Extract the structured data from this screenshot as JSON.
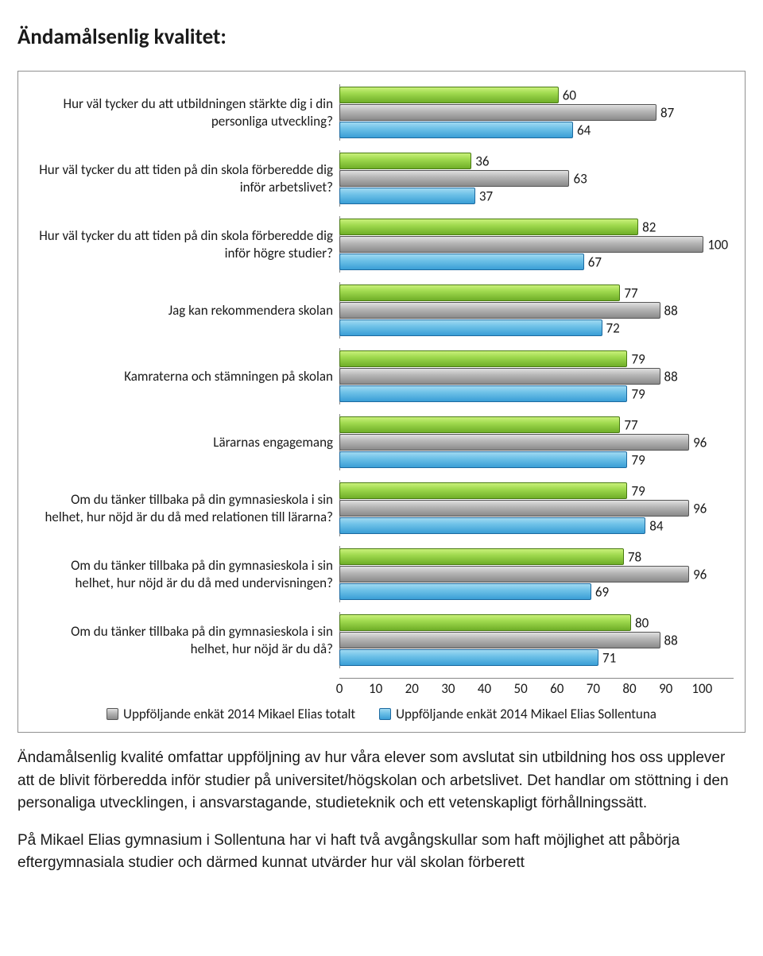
{
  "title": "Ändamålsenlig kvalitet:",
  "chart": {
    "type": "bar",
    "xlim": [
      0,
      100
    ],
    "xtick_step": 10,
    "series_colors": {
      "green": {
        "name": "green",
        "is_plotted": false
      },
      "grey": {
        "name": "grey",
        "legend": "Uppföljande enkät 2014 Mikael Elias totalt"
      },
      "blue": {
        "name": "blue",
        "legend": "Uppföljande enkät 2014 Mikael Elias Sollentuna"
      }
    },
    "categories": [
      {
        "label": "Hur väl tycker du att utbildningen stärkte dig i din personliga utveckling?",
        "bars": [
          {
            "series": "green",
            "value": 60
          },
          {
            "series": "grey",
            "value": 87
          },
          {
            "series": "blue",
            "value": 64
          }
        ]
      },
      {
        "label": "Hur väl tycker du att tiden på din skola förberedde dig inför arbetslivet?",
        "bars": [
          {
            "series": "green",
            "value": 36
          },
          {
            "series": "grey",
            "value": 63
          },
          {
            "series": "blue",
            "value": 37
          }
        ]
      },
      {
        "label": "Hur väl tycker du att tiden på din skola förberedde dig inför högre studier?",
        "bars": [
          {
            "series": "green",
            "value": 82
          },
          {
            "series": "grey",
            "value": 100
          },
          {
            "series": "blue",
            "value": 67
          }
        ]
      },
      {
        "label": "Jag kan rekommendera skolan",
        "bars": [
          {
            "series": "green",
            "value": 77
          },
          {
            "series": "grey",
            "value": 88
          },
          {
            "series": "blue",
            "value": 72
          }
        ]
      },
      {
        "label": "Kamraterna och stämningen på skolan",
        "bars": [
          {
            "series": "green",
            "value": 79
          },
          {
            "series": "grey",
            "value": 88
          },
          {
            "series": "blue",
            "value": 79
          }
        ]
      },
      {
        "label": "Lärarnas engagemang",
        "bars": [
          {
            "series": "green",
            "value": 77
          },
          {
            "series": "grey",
            "value": 96
          },
          {
            "series": "blue",
            "value": 79
          }
        ]
      },
      {
        "label": "Om du tänker tillbaka på din gymnasieskola i sin helhet, hur nöjd är du då med relationen till lärarna?",
        "bars": [
          {
            "series": "green",
            "value": 79
          },
          {
            "series": "grey",
            "value": 96
          },
          {
            "series": "blue",
            "value": 84
          }
        ]
      },
      {
        "label": "Om du tänker tillbaka på din gymnasieskola i sin helhet, hur nöjd är du då med undervisningen?",
        "bars": [
          {
            "series": "green",
            "value": 78
          },
          {
            "series": "grey",
            "value": 96
          },
          {
            "series": "blue",
            "value": 69
          }
        ]
      },
      {
        "label": "Om du tänker tillbaka på din gymnasieskola i sin helhet, hur nöjd är du då?",
        "bars": [
          {
            "series": "green",
            "value": 80
          },
          {
            "series": "grey",
            "value": 88
          },
          {
            "series": "blue",
            "value": 71
          }
        ]
      }
    ]
  },
  "paragraphs": {
    "p1": "Ändamålsenlig kvalité omfattar uppföljning av hur våra elever som avslutat sin utbildning hos oss upplever att de blivit förberedda inför studier på universitet/högskolan och arbetslivet. Det handlar om stöttning i den personaliga utvecklingen, i ansvarstagande, studieteknik och ett vetenskapligt förhållningssätt.",
    "p2": "På Mikael Elias gymnasium i Sollentuna har vi haft två avgångskullar som haft möjlighet att påbörja eftergymnasiala studier och därmed kunnat utvärder hur väl skolan förberett"
  }
}
